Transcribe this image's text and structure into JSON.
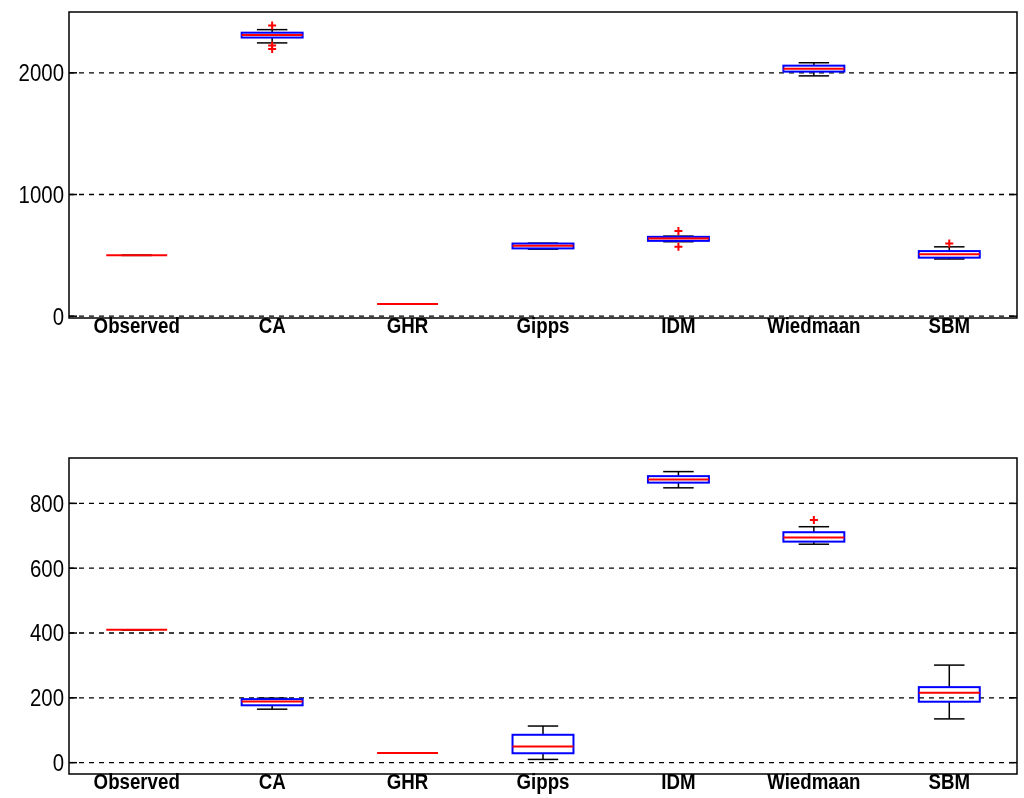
{
  "chart_data": [
    {
      "type": "box",
      "categories": [
        "Observed",
        "CA",
        "GHR",
        "Gipps",
        "IDM",
        "Wiedmaan",
        "SBM"
      ],
      "ylim": [
        -15,
        2500
      ],
      "yticks": [
        0,
        1000,
        2000
      ],
      "grid": "y",
      "series": [
        {
          "colors": [
            "#ff0000",
            "#0000ff",
            "#ff0000",
            "#0000ff",
            "#0000ff",
            "#0000ff",
            "#0000ff"
          ],
          "boxes": [
            {
              "low": 500,
              "q1": 500,
              "median": 500,
              "q3": 500,
              "high": 500
            },
            {
              "low": 2246,
              "q1": 2290,
              "median": 2310,
              "q3": 2330,
              "high": 2355,
              "outliers": [
                2390,
                2225,
                2195
              ]
            },
            {
              "low": 100,
              "q1": 100,
              "median": 100,
              "q3": 100,
              "high": 100
            },
            {
              "low": 551,
              "q1": 557,
              "median": 578,
              "q3": 597,
              "high": 600
            },
            {
              "low": 612,
              "q1": 619,
              "median": 638,
              "q3": 652,
              "high": 658,
              "outliers": [
                700,
                570
              ]
            },
            {
              "low": 1975,
              "q1": 2010,
              "median": 2034,
              "q3": 2059,
              "high": 2083
            },
            {
              "low": 470,
              "q1": 481,
              "median": 508,
              "q3": 535,
              "high": 570,
              "outliers": [
                597
              ]
            }
          ]
        }
      ]
    },
    {
      "type": "box",
      "categories": [
        "Observed",
        "CA",
        "GHR",
        "Gipps",
        "IDM",
        "Wiedmaan",
        "SBM"
      ],
      "ylim": [
        -35,
        940
      ],
      "yticks": [
        0,
        200,
        400,
        600,
        800
      ],
      "grid": "y",
      "series": [
        {
          "colors": [
            "#ff0000",
            "#0000ff",
            "#ff0000",
            "#0000ff",
            "#0000ff",
            "#0000ff",
            "#0000ff"
          ],
          "boxes": [
            {
              "low": 410,
              "q1": 410,
              "median": 410,
              "q3": 410,
              "high": 410
            },
            {
              "low": 165,
              "q1": 177,
              "median": 189,
              "q3": 196,
              "high": 199
            },
            {
              "low": 30,
              "q1": 30,
              "median": 30,
              "q3": 30,
              "high": 30
            },
            {
              "low": 10,
              "q1": 29,
              "median": 50,
              "q3": 86,
              "high": 113
            },
            {
              "low": 848,
              "q1": 864,
              "median": 874,
              "q3": 884,
              "high": 898
            },
            {
              "low": 674,
              "q1": 682,
              "median": 695,
              "q3": 711,
              "high": 728,
              "outliers": [
                749
              ]
            },
            {
              "low": 135,
              "q1": 188,
              "median": 216,
              "q3": 233,
              "high": 301
            }
          ]
        }
      ]
    }
  ]
}
